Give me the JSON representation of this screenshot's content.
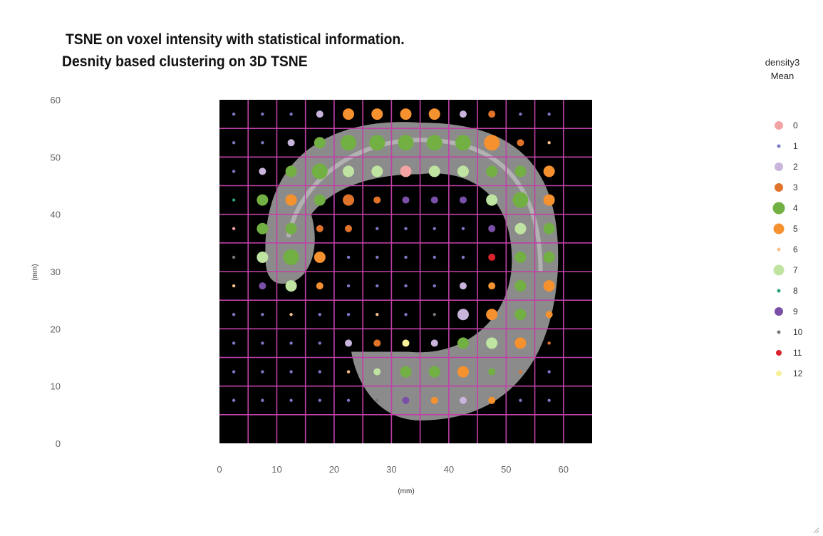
{
  "header": {
    "title_line1": "TSNE on voxel intensity with statistical information.",
    "title_line2": "Desnity based clustering on 3D TSNE"
  },
  "legend": {
    "title_line1": "density3",
    "title_line2": "Mean",
    "items": [
      {
        "label": "0",
        "color": "#f4a3a3"
      },
      {
        "label": "1",
        "color": "#7b79c4"
      },
      {
        "label": "2",
        "color": "#c9b4dc"
      },
      {
        "label": "3",
        "color": "#e0722a"
      },
      {
        "label": "4",
        "color": "#72b043"
      },
      {
        "label": "5",
        "color": "#f5912e"
      },
      {
        "label": "6",
        "color": "#f9c08a"
      },
      {
        "label": "7",
        "color": "#bfe3a0"
      },
      {
        "label": "8",
        "color": "#2a9d78"
      },
      {
        "label": "9",
        "color": "#7a4fa8"
      },
      {
        "label": "10",
        "color": "#777777"
      },
      {
        "label": "11",
        "color": "#d9232d"
      },
      {
        "label": "12",
        "color": "#f7f29a"
      }
    ]
  },
  "chart_data": {
    "type": "scatter",
    "title": "TSNE on voxel intensity with statistical information.",
    "subtitle": "Desnity based clustering on 3D TSNE",
    "xlabel": "(mm)",
    "ylabel": "(mm)",
    "xlim": [
      0,
      65
    ],
    "ylim": [
      0,
      60
    ],
    "xticks": [
      0,
      10,
      20,
      30,
      40,
      50,
      60
    ],
    "yticks": [
      0,
      10,
      20,
      30,
      40,
      50,
      60
    ],
    "grid": true,
    "grid_color": "#c040a8",
    "plot_background": "#000000",
    "legend_position": "right",
    "size_levels": {
      "tiny": 1,
      "small": 2,
      "medium": 3,
      "large": 4
    },
    "points": [
      [
        2.5,
        57.5,
        1,
        1
      ],
      [
        7.5,
        57.5,
        1,
        1
      ],
      [
        12.5,
        57.5,
        1,
        1
      ],
      [
        17.5,
        57.5,
        2,
        2
      ],
      [
        22.5,
        57.5,
        5,
        3
      ],
      [
        27.5,
        57.5,
        5,
        3
      ],
      [
        32.5,
        57.5,
        5,
        3
      ],
      [
        37.5,
        57.5,
        5,
        3
      ],
      [
        42.5,
        57.5,
        2,
        2
      ],
      [
        47.5,
        57.5,
        3,
        2
      ],
      [
        52.5,
        57.5,
        1,
        1
      ],
      [
        57.5,
        57.5,
        1,
        1
      ],
      [
        2.5,
        52.5,
        1,
        1
      ],
      [
        7.5,
        52.5,
        1,
        1
      ],
      [
        12.5,
        52.5,
        2,
        2
      ],
      [
        17.5,
        52.5,
        4,
        3
      ],
      [
        22.5,
        52.5,
        4,
        4
      ],
      [
        27.5,
        52.5,
        4,
        4
      ],
      [
        32.5,
        52.5,
        4,
        4
      ],
      [
        37.5,
        52.5,
        4,
        4
      ],
      [
        42.5,
        52.5,
        4,
        4
      ],
      [
        47.5,
        52.5,
        5,
        4
      ],
      [
        52.5,
        52.5,
        3,
        2
      ],
      [
        57.5,
        52.5,
        6,
        1
      ],
      [
        2.5,
        47.5,
        1,
        1
      ],
      [
        7.5,
        47.5,
        2,
        2
      ],
      [
        12.5,
        47.5,
        4,
        3
      ],
      [
        17.5,
        47.5,
        4,
        4
      ],
      [
        22.5,
        47.5,
        7,
        3
      ],
      [
        27.5,
        47.5,
        7,
        3
      ],
      [
        32.5,
        47.5,
        0,
        3
      ],
      [
        37.5,
        47.5,
        7,
        3
      ],
      [
        42.5,
        47.5,
        7,
        3
      ],
      [
        47.5,
        47.5,
        4,
        3
      ],
      [
        52.5,
        47.5,
        4,
        3
      ],
      [
        57.5,
        47.5,
        5,
        3
      ],
      [
        2.5,
        42.5,
        8,
        1
      ],
      [
        7.5,
        42.5,
        4,
        3
      ],
      [
        12.5,
        42.5,
        5,
        3
      ],
      [
        17.5,
        42.5,
        4,
        3
      ],
      [
        22.5,
        42.5,
        3,
        3
      ],
      [
        27.5,
        42.5,
        3,
        2
      ],
      [
        32.5,
        42.5,
        9,
        2
      ],
      [
        37.5,
        42.5,
        9,
        2
      ],
      [
        42.5,
        42.5,
        9,
        2
      ],
      [
        47.5,
        42.5,
        7,
        3
      ],
      [
        52.5,
        42.5,
        4,
        4
      ],
      [
        57.5,
        42.5,
        5,
        3
      ],
      [
        2.5,
        37.5,
        0,
        1
      ],
      [
        7.5,
        37.5,
        4,
        3
      ],
      [
        12.5,
        37.5,
        4,
        3
      ],
      [
        17.5,
        37.5,
        3,
        2
      ],
      [
        22.5,
        37.5,
        3,
        2
      ],
      [
        27.5,
        37.5,
        1,
        1
      ],
      [
        32.5,
        37.5,
        1,
        1
      ],
      [
        37.5,
        37.5,
        1,
        1
      ],
      [
        42.5,
        37.5,
        1,
        1
      ],
      [
        47.5,
        37.5,
        9,
        2
      ],
      [
        52.5,
        37.5,
        7,
        3
      ],
      [
        57.5,
        37.5,
        4,
        3
      ],
      [
        2.5,
        32.5,
        10,
        1
      ],
      [
        7.5,
        32.5,
        7,
        3
      ],
      [
        12.5,
        32.5,
        4,
        4
      ],
      [
        17.5,
        32.5,
        5,
        3
      ],
      [
        22.5,
        32.5,
        1,
        1
      ],
      [
        27.5,
        32.5,
        1,
        1
      ],
      [
        32.5,
        32.5,
        1,
        1
      ],
      [
        37.5,
        32.5,
        1,
        1
      ],
      [
        42.5,
        32.5,
        1,
        1
      ],
      [
        47.5,
        32.5,
        11,
        2
      ],
      [
        52.5,
        32.5,
        4,
        3
      ],
      [
        57.5,
        32.5,
        4,
        3
      ],
      [
        2.5,
        27.5,
        6,
        1
      ],
      [
        7.5,
        27.5,
        9,
        2
      ],
      [
        12.5,
        27.5,
        7,
        3
      ],
      [
        17.5,
        27.5,
        5,
        2
      ],
      [
        22.5,
        27.5,
        1,
        1
      ],
      [
        27.5,
        27.5,
        1,
        1
      ],
      [
        32.5,
        27.5,
        1,
        1
      ],
      [
        37.5,
        27.5,
        1,
        1
      ],
      [
        42.5,
        27.5,
        2,
        2
      ],
      [
        47.5,
        27.5,
        5,
        2
      ],
      [
        52.5,
        27.5,
        4,
        3
      ],
      [
        57.5,
        27.5,
        5,
        3
      ],
      [
        2.5,
        22.5,
        1,
        1
      ],
      [
        7.5,
        22.5,
        1,
        1
      ],
      [
        12.5,
        22.5,
        6,
        1
      ],
      [
        17.5,
        22.5,
        1,
        1
      ],
      [
        22.5,
        22.5,
        1,
        1
      ],
      [
        27.5,
        22.5,
        6,
        1
      ],
      [
        32.5,
        22.5,
        1,
        1
      ],
      [
        37.5,
        22.5,
        10,
        1
      ],
      [
        42.5,
        22.5,
        2,
        3
      ],
      [
        47.5,
        22.5,
        5,
        3
      ],
      [
        52.5,
        22.5,
        4,
        3
      ],
      [
        57.5,
        22.5,
        5,
        2
      ],
      [
        2.5,
        17.5,
        1,
        1
      ],
      [
        7.5,
        17.5,
        1,
        1
      ],
      [
        12.5,
        17.5,
        1,
        1
      ],
      [
        17.5,
        17.5,
        1,
        1
      ],
      [
        22.5,
        17.5,
        2,
        2
      ],
      [
        27.5,
        17.5,
        3,
        2
      ],
      [
        32.5,
        17.5,
        12,
        2
      ],
      [
        37.5,
        17.5,
        2,
        2
      ],
      [
        42.5,
        17.5,
        4,
        3
      ],
      [
        47.5,
        17.5,
        7,
        3
      ],
      [
        52.5,
        17.5,
        5,
        3
      ],
      [
        57.5,
        17.5,
        3,
        1
      ],
      [
        2.5,
        12.5,
        1,
        1
      ],
      [
        7.5,
        12.5,
        1,
        1
      ],
      [
        12.5,
        12.5,
        1,
        1
      ],
      [
        17.5,
        12.5,
        1,
        1
      ],
      [
        22.5,
        12.5,
        6,
        1
      ],
      [
        27.5,
        12.5,
        7,
        2
      ],
      [
        32.5,
        12.5,
        4,
        3
      ],
      [
        37.5,
        12.5,
        4,
        3
      ],
      [
        42.5,
        12.5,
        5,
        3
      ],
      [
        47.5,
        12.5,
        4,
        2
      ],
      [
        52.5,
        12.5,
        3,
        1
      ],
      [
        57.5,
        12.5,
        1,
        1
      ],
      [
        2.5,
        7.5,
        1,
        1
      ],
      [
        7.5,
        7.5,
        1,
        1
      ],
      [
        12.5,
        7.5,
        1,
        1
      ],
      [
        17.5,
        7.5,
        1,
        1
      ],
      [
        22.5,
        7.5,
        1,
        1
      ],
      [
        27.5,
        7.5,
        10,
        1
      ],
      [
        32.5,
        7.5,
        9,
        2
      ],
      [
        37.5,
        7.5,
        5,
        2
      ],
      [
        42.5,
        7.5,
        2,
        2
      ],
      [
        47.5,
        7.5,
        5,
        2
      ],
      [
        52.5,
        7.5,
        1,
        1
      ],
      [
        57.5,
        7.5,
        1,
        1
      ]
    ]
  }
}
